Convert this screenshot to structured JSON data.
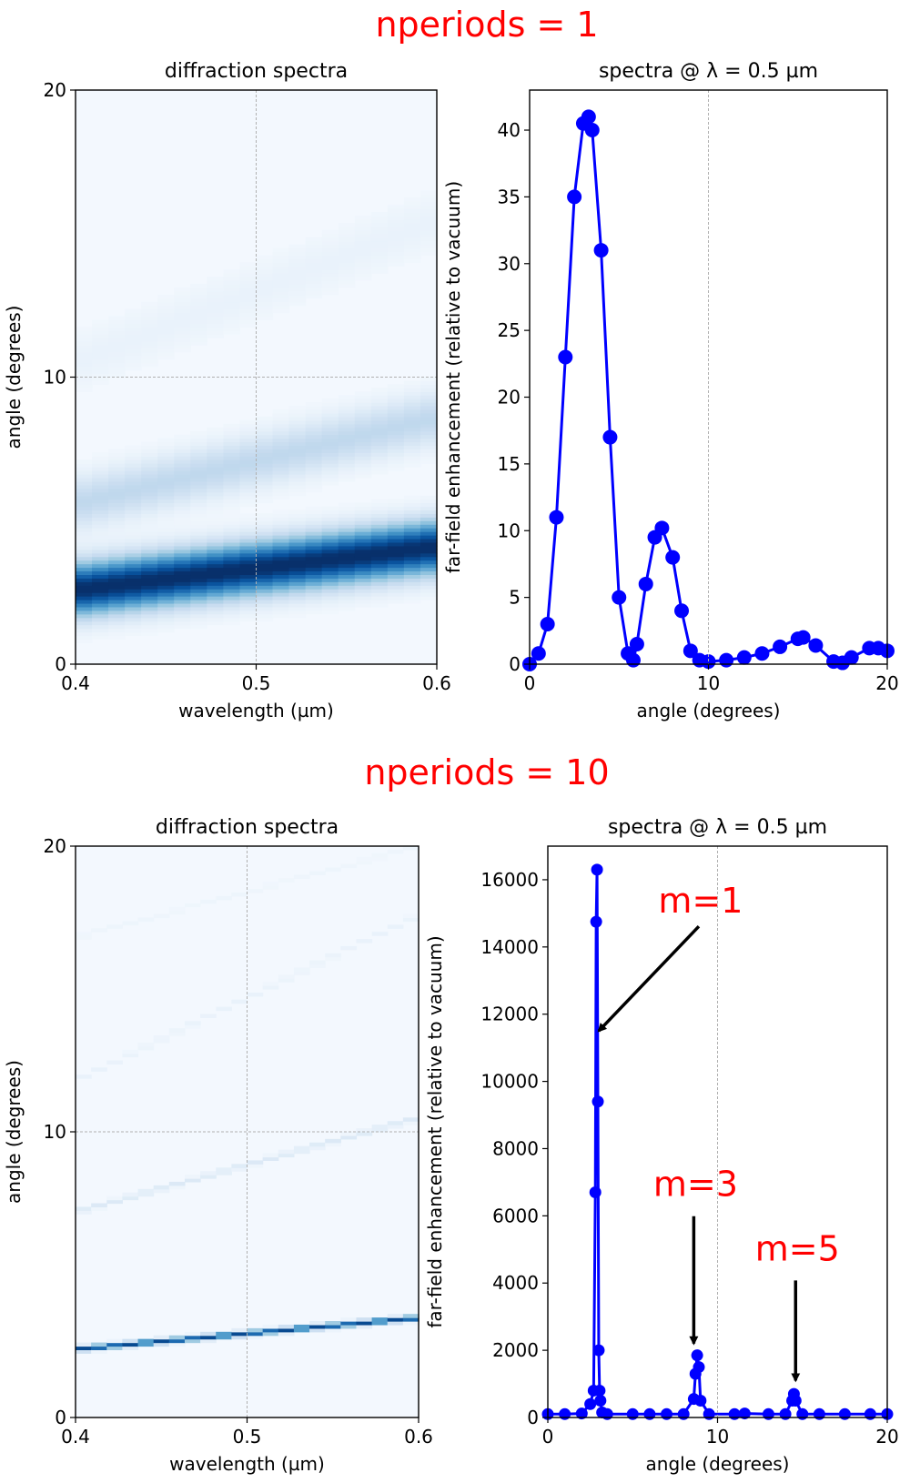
{
  "panels": {
    "top_title": "nperiods = 1",
    "bottom_title": "nperiods = 10"
  },
  "colors": {
    "title_red": "#ff0000",
    "series_blue": "#0000ff",
    "cmap": "Blues"
  },
  "chart_data": [
    {
      "type": "heatmap",
      "title": "diffraction spectra",
      "xlabel": "wavelength (µm)",
      "ylabel": "angle (degrees)",
      "xlim": [
        0.4,
        0.6
      ],
      "ylim": [
        0,
        20
      ],
      "xticks": [
        "0.4",
        "0.5",
        "0.6"
      ],
      "yticks": [
        "0",
        "10",
        "20"
      ],
      "grid": true,
      "bands": [
        {
          "angle_at_0.4": 2.6,
          "angle_at_0.6": 4.1,
          "width": 0.9,
          "intensity": 1.0
        },
        {
          "angle_at_0.4": 5.6,
          "angle_at_0.6": 8.6,
          "width": 0.9,
          "intensity": 0.25
        },
        {
          "angle_at_0.4": 10.5,
          "angle_at_0.6": 15.5,
          "width": 1.0,
          "intensity": 0.05
        }
      ]
    },
    {
      "type": "line",
      "title": "spectra @  λ = 0.5 µm",
      "xlabel": "angle (degrees)",
      "ylabel": "far-field enhancement (relative to vacuum)",
      "xlim": [
        0,
        20
      ],
      "ylim": [
        0,
        43
      ],
      "xticks": [
        0,
        10,
        20
      ],
      "yticks": [
        0,
        5,
        10,
        15,
        20,
        25,
        30,
        35,
        40
      ],
      "grid": true,
      "x": [
        0,
        0.5,
        1,
        1.5,
        2,
        2.5,
        3,
        3.3,
        3.5,
        4,
        4.5,
        5,
        5.5,
        5.8,
        6,
        6.5,
        7,
        7.4,
        8,
        8.5,
        9,
        9.5,
        10,
        11,
        12,
        13,
        14,
        15,
        15.3,
        16,
        17,
        17.5,
        18,
        19,
        19.5,
        20
      ],
      "y": [
        0,
        0.8,
        3,
        11,
        23,
        35,
        40.5,
        41,
        40,
        31,
        17,
        5,
        0.8,
        0.3,
        1.5,
        6,
        9.5,
        10.2,
        8,
        4,
        1,
        0.3,
        0.2,
        0.3,
        0.5,
        0.8,
        1.3,
        1.9,
        2.0,
        1.4,
        0.2,
        0.1,
        0.5,
        1.2,
        1.2,
        1.0
      ]
    },
    {
      "type": "heatmap",
      "title": "diffraction spectra",
      "xlabel": "wavelength (µm)",
      "ylabel": "angle (degrees)",
      "xlim": [
        0.4,
        0.6
      ],
      "ylim": [
        0,
        20
      ],
      "xticks": [
        "0.4",
        "0.5",
        "0.6"
      ],
      "yticks": [
        "0",
        "10",
        "20"
      ],
      "grid": true,
      "lines": [
        {
          "angle_at_0.4": 2.4,
          "angle_at_0.6": 3.5,
          "intensity": 0.9
        },
        {
          "angle_at_0.4": 7.2,
          "angle_at_0.6": 10.5,
          "intensity": 0.12
        },
        {
          "angle_at_0.4": 11.8,
          "angle_at_0.6": 17.6,
          "intensity": 0.05
        },
        {
          "angle_at_0.4": 16.8,
          "angle_at_0.6": 20.0,
          "intensity": 0.03
        }
      ]
    },
    {
      "type": "line",
      "title": "spectra @  λ = 0.5 µm",
      "xlabel": "angle (degrees)",
      "ylabel": "far-field enhancement (relative to vacuum)",
      "xlim": [
        0,
        20
      ],
      "ylim": [
        0,
        17000
      ],
      "xticks": [
        0,
        10,
        20
      ],
      "yticks": [
        0,
        2000,
        4000,
        6000,
        8000,
        10000,
        12000,
        14000,
        16000
      ],
      "grid": true,
      "x": [
        0,
        1,
        2,
        2.5,
        2.7,
        2.8,
        2.85,
        2.9,
        2.95,
        3.0,
        3.05,
        3.1,
        3.2,
        3.5,
        5,
        6,
        7,
        8,
        8.6,
        8.7,
        8.8,
        8.9,
        9.0,
        9.5,
        11,
        11.6,
        13,
        14,
        14.4,
        14.5,
        14.6,
        15,
        16,
        17.5,
        19,
        20
      ],
      "y": [
        100,
        100,
        120,
        400,
        800,
        6700,
        14750,
        16300,
        9400,
        2000,
        800,
        500,
        150,
        100,
        100,
        100,
        100,
        100,
        550,
        1300,
        1850,
        1500,
        500,
        100,
        100,
        120,
        100,
        100,
        500,
        700,
        500,
        100,
        100,
        100,
        100,
        100
      ],
      "annotations": [
        {
          "text": "m=1",
          "x_data": 3.0,
          "y_data": 11500
        },
        {
          "text": "m=3",
          "x_data": 8.6,
          "y_data": 2200
        },
        {
          "text": "m=5",
          "x_data": 14.6,
          "y_data": 1100
        }
      ]
    }
  ]
}
